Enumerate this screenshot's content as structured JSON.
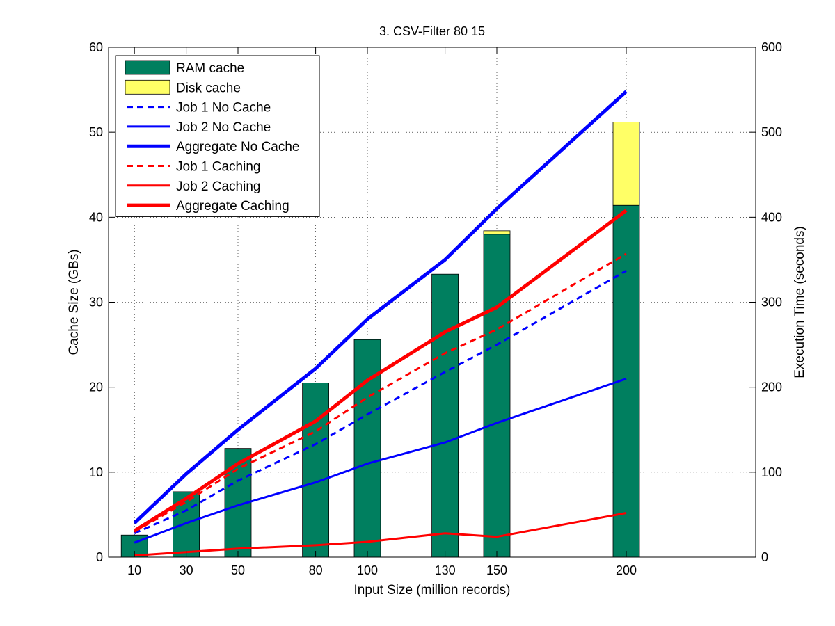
{
  "chart_data": {
    "type": "bar+line",
    "title": "3. CSV-Filter 80 15",
    "xlabel": "Input Size (million records)",
    "ylabel_left": "Cache Size (GBs)",
    "ylabel_right": "Execution Time (seconds)",
    "xlim": [
      0,
      250
    ],
    "ylim_left": [
      0,
      60
    ],
    "ylim_right": [
      0,
      600
    ],
    "x": [
      10,
      30,
      50,
      80,
      100,
      130,
      150,
      200
    ],
    "x_ticks": [
      "10",
      "30",
      "50",
      "80",
      "100",
      "130",
      "150",
      "200"
    ],
    "yticks_left": [
      "0",
      "10",
      "20",
      "30",
      "40",
      "50",
      "60"
    ],
    "yticks_right": [
      "0",
      "100",
      "200",
      "300",
      "400",
      "500",
      "600"
    ],
    "grid": true,
    "legend_position": "top-left",
    "bars": [
      {
        "name": "RAM cache",
        "color": "#007f5f",
        "axis": "left",
        "values": [
          2.6,
          7.7,
          12.8,
          20.5,
          25.6,
          33.3,
          38.0,
          41.4
        ]
      },
      {
        "name": "Disk cache",
        "color": "#ffff66",
        "axis": "left",
        "values": [
          0,
          0,
          0,
          0,
          0,
          0,
          0.4,
          9.8
        ]
      }
    ],
    "series": [
      {
        "name": "Job 1 No Cache",
        "color": "#0000ff",
        "style": "dashed",
        "width": 3,
        "axis": "right",
        "values": [
          28,
          55,
          90,
          133,
          168,
          218,
          250,
          337
        ]
      },
      {
        "name": "Job 2 No Cache",
        "color": "#0000ff",
        "style": "solid",
        "width": 3,
        "axis": "right",
        "values": [
          17,
          40,
          61,
          88,
          110,
          135,
          158,
          210
        ]
      },
      {
        "name": "Aggregate No Cache",
        "color": "#0000ff",
        "style": "solid",
        "width": 5,
        "axis": "right",
        "values": [
          40,
          98,
          150,
          222,
          280,
          350,
          410,
          548
        ]
      },
      {
        "name": "Job 1 Caching",
        "color": "#ff0000",
        "style": "dashed",
        "width": 3,
        "axis": "right",
        "values": [
          30,
          65,
          104,
          148,
          188,
          240,
          268,
          357
        ]
      },
      {
        "name": "Job 2 Caching",
        "color": "#ff0000",
        "style": "solid",
        "width": 3,
        "axis": "right",
        "values": [
          2,
          6,
          10,
          14,
          18,
          28,
          24,
          52
        ]
      },
      {
        "name": "Aggregate Caching",
        "color": "#ff0000",
        "style": "solid",
        "width": 5,
        "axis": "right",
        "values": [
          31,
          69,
          110,
          160,
          208,
          265,
          294,
          408
        ]
      }
    ]
  }
}
